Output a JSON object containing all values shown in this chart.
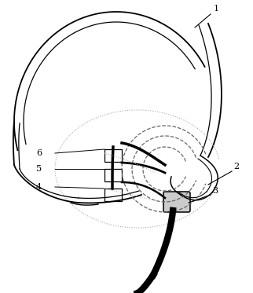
{
  "background_color": "#ffffff",
  "line_color": "#000000",
  "dotted_color": "#aaaaaa",
  "dashed_color": "#666666",
  "label_color": "#000000",
  "figsize": [
    3.22,
    3.73
  ],
  "dpi": 100
}
